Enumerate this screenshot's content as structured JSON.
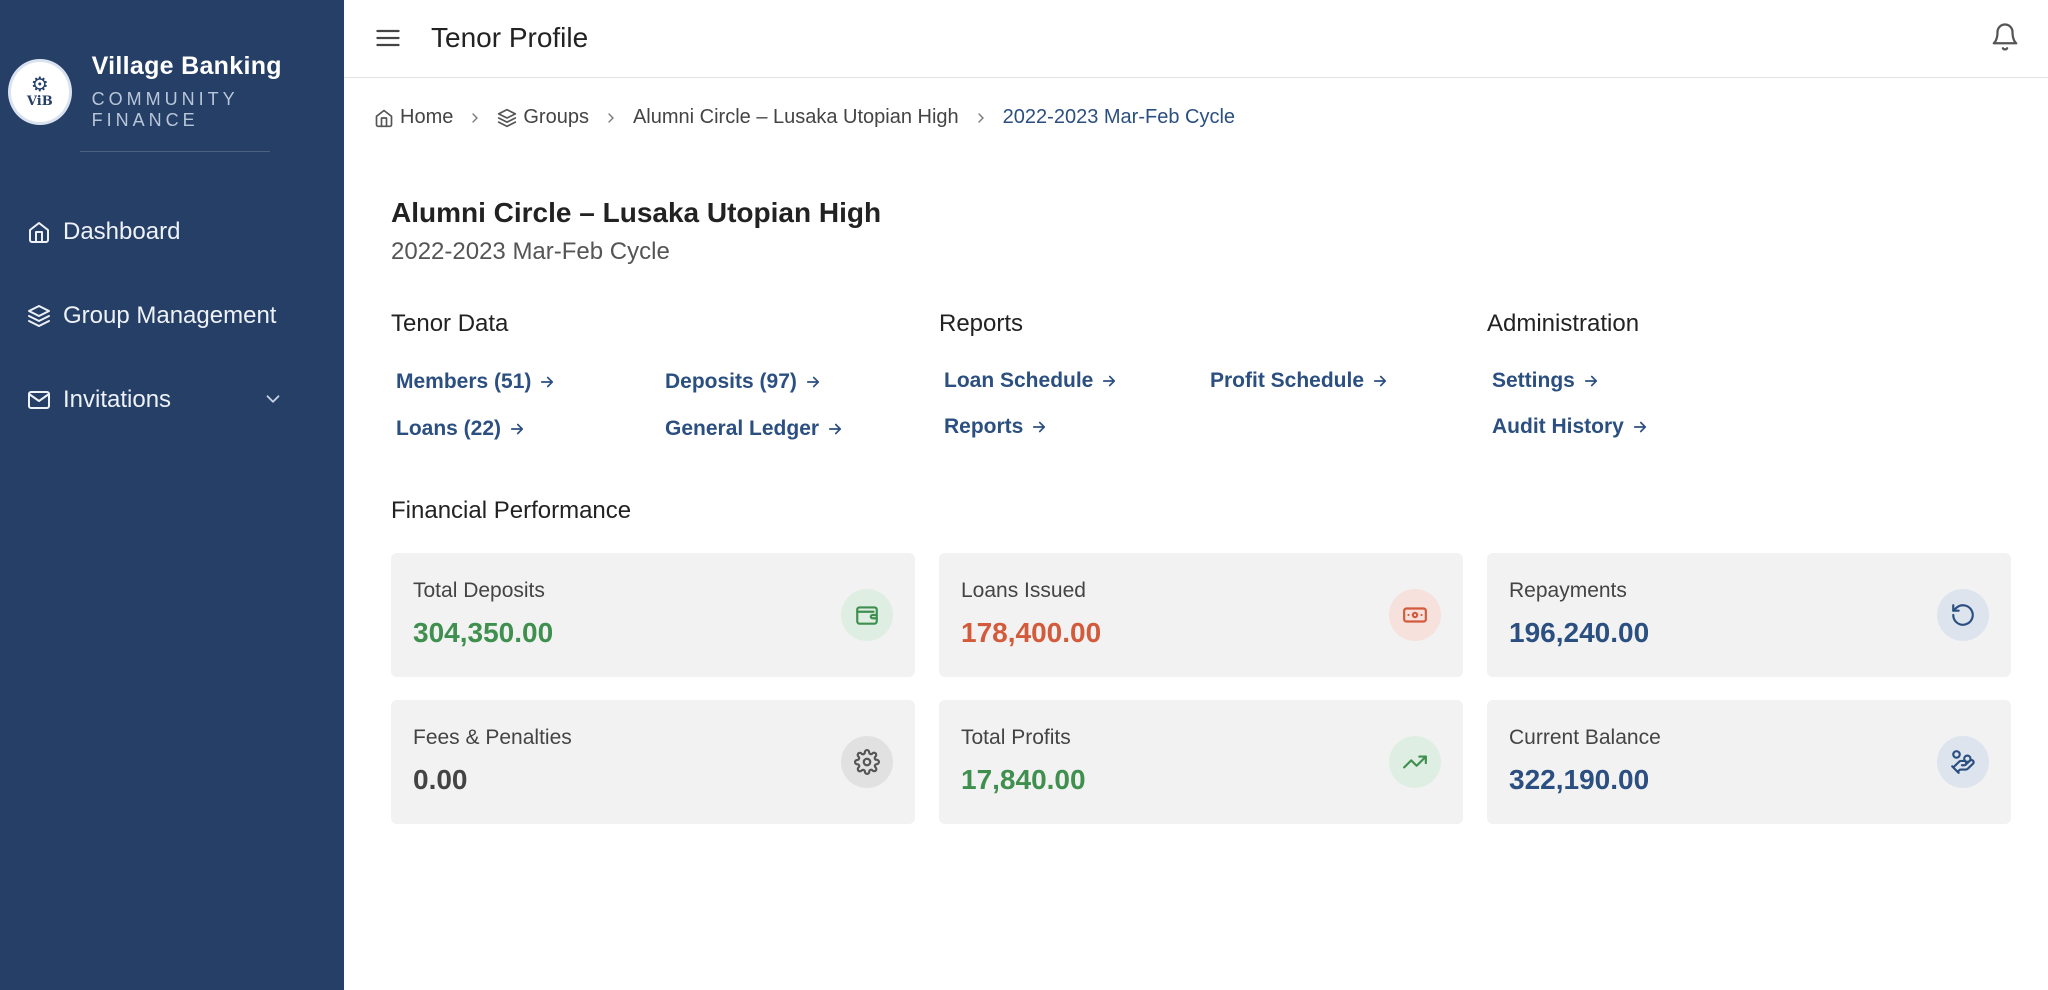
{
  "sidebar": {
    "brand_name": "Village Banking",
    "brand_sub": "COMMUNITY FINANCE",
    "logo_text": "ViB",
    "items": [
      {
        "label": "Dashboard",
        "icon": "home-icon"
      },
      {
        "label": "Group Management",
        "icon": "layers-icon"
      },
      {
        "label": "Invitations",
        "icon": "mail-icon"
      }
    ]
  },
  "header": {
    "title": "Tenor Profile"
  },
  "breadcrumb": {
    "home": "Home",
    "groups": "Groups",
    "group": "Alumni Circle – Lusaka Utopian High",
    "cycle": "2022-2023 Mar-Feb Cycle"
  },
  "group": {
    "title": "Alumni Circle – Lusaka Utopian High",
    "cycle": "2022-2023 Mar-Feb Cycle"
  },
  "sections": {
    "tenor_data": {
      "title": "Tenor Data",
      "links": [
        "Members (51)",
        "Deposits (97)",
        "Loans (22)",
        "General Ledger"
      ]
    },
    "reports": {
      "title": "Reports",
      "links": [
        "Loan Schedule",
        "Profit Schedule",
        "Reports"
      ]
    },
    "administration": {
      "title": "Administration",
      "links": [
        "Settings",
        "Audit History"
      ]
    }
  },
  "financial": {
    "title": "Financial Performance",
    "cards": [
      {
        "label": "Total Deposits",
        "value": "304,350.00",
        "color": "#3f8f4f",
        "icon": "wallet-icon"
      },
      {
        "label": "Loans Issued",
        "value": "178,400.00",
        "color": "#d35a3a",
        "icon": "banknote-icon"
      },
      {
        "label": "Repayments",
        "value": "196,240.00",
        "color": "#2b4f80",
        "icon": "rotate-ccw-icon"
      },
      {
        "label": "Fees & Penalties",
        "value": "0.00",
        "color": "#444444",
        "icon": "gear-icon"
      },
      {
        "label": "Total Profits",
        "value": "17,840.00",
        "color": "#3f8f4f",
        "icon": "trending-up-icon"
      },
      {
        "label": "Current Balance",
        "value": "322,190.00",
        "color": "#2b4f80",
        "icon": "hand-coins-icon"
      }
    ]
  },
  "colors": {
    "sidebar_bg": "#253f66",
    "link": "#2b4f80",
    "card_bg": "#f2f2f2"
  }
}
